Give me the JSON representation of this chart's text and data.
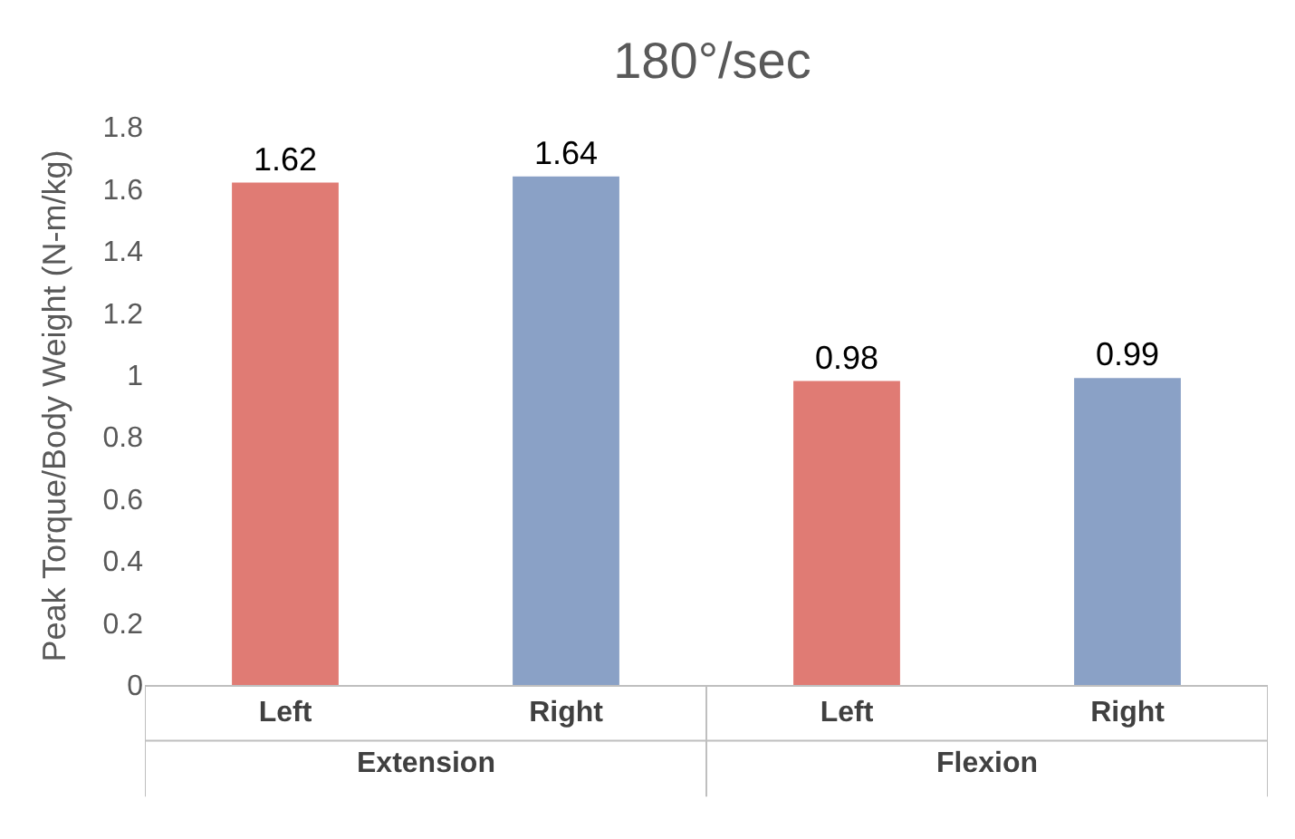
{
  "chart_data": {
    "type": "bar",
    "title": "180°/sec",
    "ylabel": "Peak Torque/Body Weight (N-m/kg)",
    "categories": [
      "Left",
      "Right",
      "Left",
      "Right"
    ],
    "values": [
      1.62,
      1.64,
      0.98,
      0.99
    ],
    "colors": [
      "#e07b74",
      "#8aa1c6",
      "#e07b74",
      "#8aa1c6"
    ],
    "annotations": [
      "Extension",
      "Flexion"
    ],
    "ylim": [
      0,
      1.8
    ],
    "yticks": [
      0,
      0.2,
      0.4,
      0.6,
      0.8,
      1,
      1.2,
      1.4,
      1.6,
      1.8
    ],
    "data_labels": true,
    "grid": false,
    "legend": false
  }
}
